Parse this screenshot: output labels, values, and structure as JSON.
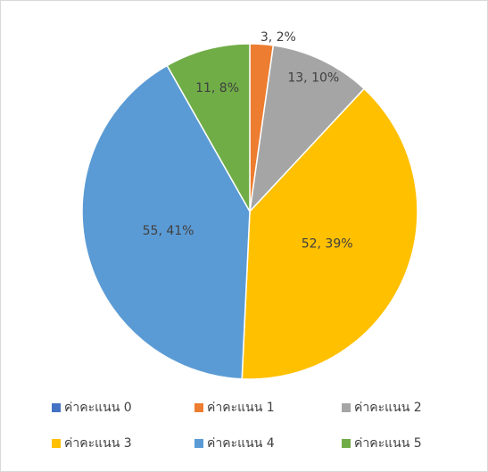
{
  "chart_data": {
    "type": "pie",
    "categories": [
      "ค่าคะแนน 0",
      "ค่าคะแนน 1",
      "ค่าคะแนน 2",
      "ค่าคะแนน  3",
      "ค่าคะแนน 4",
      "ค่าคะแนน 5"
    ],
    "values": [
      0,
      3,
      13,
      52,
      55,
      11
    ],
    "value_labels": [
      null,
      "3, 2%",
      "13, 10%",
      "52, 39%",
      "55, 41%",
      "11, 8%"
    ],
    "colors": [
      "#4472c4",
      "#ed7d31",
      "#a5a5a5",
      "#ffc000",
      "#5b9bd5",
      "#70ad47"
    ],
    "legend": "bottom"
  }
}
